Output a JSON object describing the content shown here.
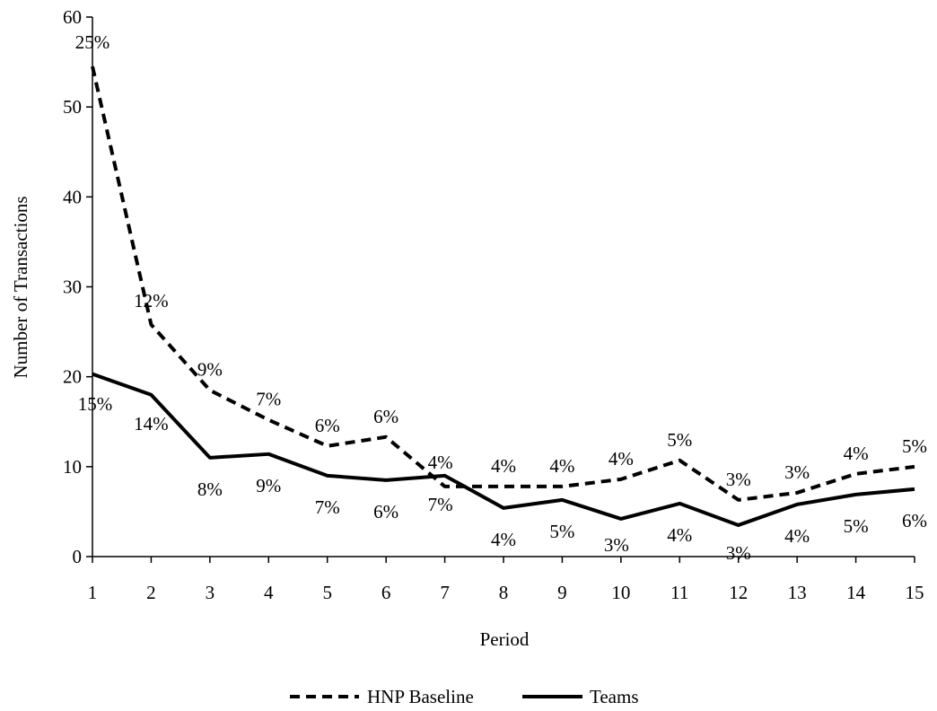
{
  "chart_data": {
    "type": "line",
    "title": "",
    "xlabel": "Period",
    "ylabel": "Number of Transactions",
    "x": [
      1,
      2,
      3,
      4,
      5,
      6,
      7,
      8,
      9,
      10,
      11,
      12,
      13,
      14,
      15
    ],
    "ylim": [
      0,
      60
    ],
    "yticks": [
      0,
      10,
      20,
      30,
      40,
      50,
      60
    ],
    "grid": false,
    "legend_position": "bottom",
    "series": [
      {
        "name": "HNP Baseline",
        "line_style": "dashed",
        "color": "#000000",
        "values": [
          54.5,
          25.8,
          18.5,
          15.2,
          12.3,
          13.3,
          7.8,
          7.8,
          7.8,
          8.6,
          10.7,
          6.3,
          7.1,
          9.2,
          10.0
        ],
        "data_labels": [
          "25%",
          "12%",
          "9%",
          "7%",
          "6%",
          "6%",
          "4%",
          "4%",
          "4%",
          "4%",
          "5%",
          "3%",
          "3%",
          "4%",
          "5%"
        ]
      },
      {
        "name": "Teams",
        "line_style": "solid",
        "color": "#000000",
        "values": [
          20.3,
          18.0,
          11.0,
          11.4,
          9.0,
          8.5,
          9.0,
          5.4,
          6.3,
          4.2,
          5.9,
          3.5,
          5.8,
          6.9,
          7.5
        ],
        "data_labels": [
          "15%",
          "14%",
          "8%",
          "9%",
          "7%",
          "6%",
          "7%",
          "4%",
          "5%",
          "3%",
          "4%",
          "3%",
          "4%",
          "5%",
          "6%"
        ]
      }
    ]
  }
}
